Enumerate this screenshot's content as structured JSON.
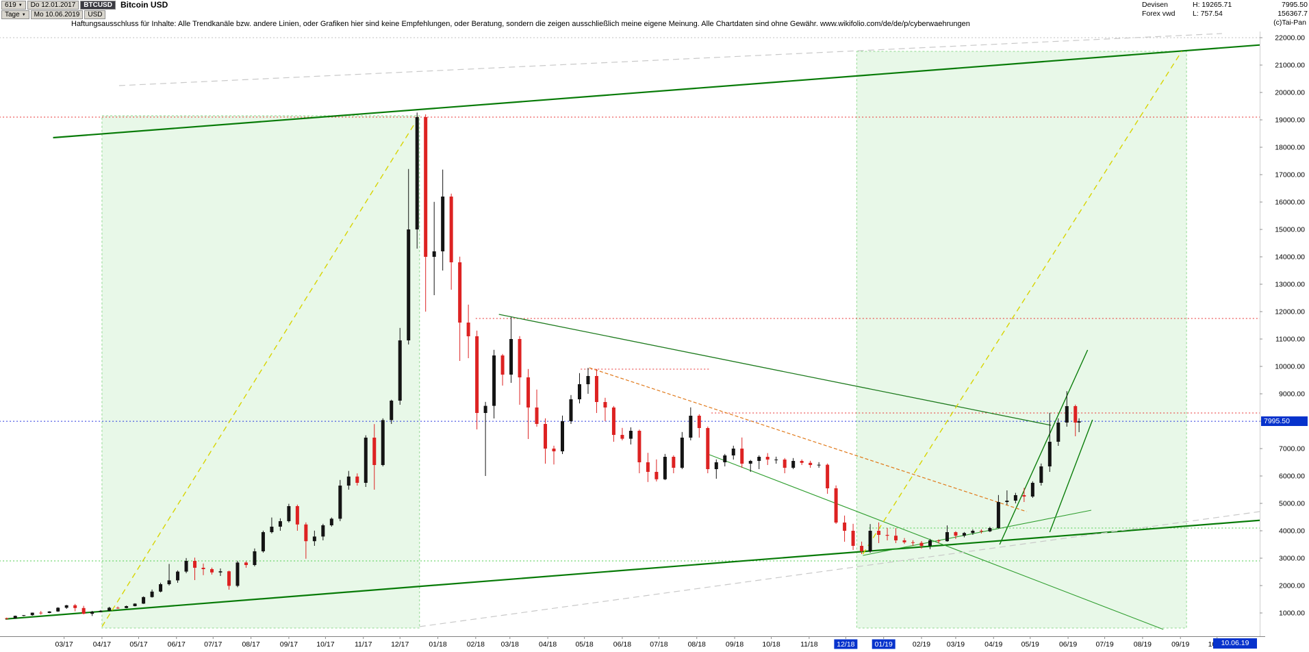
{
  "header": {
    "bars_count": "619",
    "dropdown_arrow": "▼",
    "start_date": "Do 12.01.2017",
    "symbol": "BTCUSD",
    "title": "Bitcoin USD",
    "period": "Tage",
    "end_date": "Mo 10.06.2019",
    "currency": "USD",
    "category": "Devisen",
    "feed": "Forex vwd",
    "high": "H: 19265.71",
    "low": "L: 757.54",
    "last_price": "7995.50",
    "volume": "156367.7",
    "copyright": "(c)Tai-Pan"
  },
  "disclaimer": "Haftungsausschluss für Inhalte: Alle Trendkanäle bzw. andere Linien, oder Grafiken hier sind keine Empfehlungen, oder Beratung, sondern die zeigen ausschließlich meine eigene Meinung. Alle Chartdaten sind ohne Gewähr.  www.wikifolio.com/de/de/p/cyberwaehrungen",
  "price_tag": "7995.50",
  "date_tag": "10.06.19",
  "colors": {
    "up": "#141414",
    "down": "#dd2222",
    "tag_bg": "#0733cc",
    "box_fill": "rgba(110,210,110,0.16)",
    "box_stroke": "#8fd88f"
  },
  "chart_data": {
    "type": "candlestick",
    "symbol": "BTCUSD",
    "title": "Bitcoin USD",
    "interval_label": "Tage",
    "x_start": "2017-01-12",
    "x_end": "2019-11-10",
    "current_price": 7995.5,
    "period_high": 19265.71,
    "period_low": 757.54,
    "ylim": [
      450,
      22400
    ],
    "y_ticks": [
      1000,
      2000,
      3000,
      4000,
      5000,
      6000,
      7000,
      8000,
      9000,
      10000,
      11000,
      12000,
      13000,
      14000,
      15000,
      16000,
      17000,
      18000,
      19000,
      20000,
      21000,
      22000
    ],
    "x_ticks": [
      "03/17",
      "04/17",
      "05/17",
      "06/17",
      "07/17",
      "08/17",
      "09/17",
      "10/17",
      "11/17",
      "12/17",
      "01/18",
      "02/18",
      "03/18",
      "04/18",
      "05/18",
      "06/18",
      "07/18",
      "08/18",
      "09/18",
      "10/18",
      "11/18",
      "12/18",
      "01/19",
      "02/19",
      "03/19",
      "04/19",
      "05/19",
      "06/19",
      "07/19",
      "08/19",
      "09/19",
      "10/19"
    ],
    "highlighted_x_ticks": [
      "12/18",
      "01/19"
    ],
    "candles_weekly": [
      [
        "2017-01-13",
        810,
        830,
        758,
        800
      ],
      [
        "2017-01-20",
        800,
        905,
        790,
        895
      ],
      [
        "2017-01-27",
        895,
        925,
        880,
        920
      ],
      [
        "2017-02-03",
        920,
        1015,
        900,
        1010
      ],
      [
        "2017-02-10",
        1010,
        1070,
        940,
        1000
      ],
      [
        "2017-02-17",
        1000,
        1065,
        990,
        1055
      ],
      [
        "2017-02-24",
        1055,
        1210,
        1040,
        1190
      ],
      [
        "2017-03-03",
        1190,
        1295,
        1150,
        1280
      ],
      [
        "2017-03-10",
        1280,
        1330,
        1060,
        1180
      ],
      [
        "2017-03-17",
        1180,
        1260,
        950,
        970
      ],
      [
        "2017-03-24",
        970,
        1075,
        890,
        1040
      ],
      [
        "2017-03-31",
        1040,
        1105,
        1020,
        1080
      ],
      [
        "2017-04-07",
        1080,
        1225,
        1060,
        1190
      ],
      [
        "2017-04-14",
        1190,
        1235,
        1150,
        1180
      ],
      [
        "2017-04-21",
        1180,
        1270,
        1170,
        1250
      ],
      [
        "2017-04-28",
        1250,
        1355,
        1240,
        1340
      ],
      [
        "2017-05-05",
        1340,
        1605,
        1330,
        1580
      ],
      [
        "2017-05-12",
        1580,
        1855,
        1560,
        1780
      ],
      [
        "2017-05-19",
        1780,
        2105,
        1750,
        2050
      ],
      [
        "2017-05-26",
        2050,
        2790,
        2000,
        2190
      ],
      [
        "2017-06-02",
        2190,
        2555,
        2100,
        2510
      ],
      [
        "2017-06-09",
        2510,
        3005,
        2450,
        2900
      ],
      [
        "2017-06-16",
        2900,
        3020,
        2200,
        2650
      ],
      [
        "2017-06-23",
        2650,
        2805,
        2380,
        2600
      ],
      [
        "2017-06-30",
        2600,
        2655,
        2400,
        2480
      ],
      [
        "2017-07-07",
        2480,
        2625,
        2350,
        2520
      ],
      [
        "2017-07-14",
        2520,
        2545,
        1850,
        1990
      ],
      [
        "2017-07-21",
        1990,
        2905,
        1940,
        2840
      ],
      [
        "2017-07-28",
        2840,
        2885,
        2650,
        2750
      ],
      [
        "2017-08-04",
        2750,
        3355,
        2700,
        3250
      ],
      [
        "2017-08-11",
        3250,
        4005,
        3200,
        3950
      ],
      [
        "2017-08-18",
        3950,
        4485,
        3900,
        4150
      ],
      [
        "2017-08-25",
        4150,
        4455,
        4000,
        4350
      ],
      [
        "2017-09-01",
        4350,
        4985,
        4300,
        4900
      ],
      [
        "2017-09-08",
        4900,
        4955,
        4000,
        4230
      ],
      [
        "2017-09-15",
        4230,
        4305,
        2980,
        3620
      ],
      [
        "2017-09-22",
        3620,
        4005,
        3450,
        3790
      ],
      [
        "2017-09-29",
        3790,
        4255,
        3650,
        4200
      ],
      [
        "2017-10-06",
        4200,
        4485,
        4150,
        4440
      ],
      [
        "2017-10-13",
        4440,
        5855,
        4350,
        5650
      ],
      [
        "2017-10-20",
        5650,
        6185,
        5500,
        5980
      ],
      [
        "2017-10-27",
        5980,
        6095,
        5650,
        5750
      ],
      [
        "2017-11-03",
        5750,
        7485,
        5600,
        7400
      ],
      [
        "2017-11-10",
        7400,
        7895,
        5500,
        6400
      ],
      [
        "2017-11-17",
        6400,
        8105,
        6350,
        8040
      ],
      [
        "2017-11-24",
        8040,
        8785,
        7900,
        8750
      ],
      [
        "2017-12-01",
        8750,
        11405,
        8600,
        10950
      ],
      [
        "2017-12-08",
        10950,
        17205,
        10800,
        15000
      ],
      [
        "2017-12-15",
        15000,
        19265,
        14300,
        19100
      ],
      [
        "2017-12-22",
        19100,
        19200,
        12000,
        14000
      ],
      [
        "2017-12-29",
        14000,
        16005,
        12600,
        14200
      ],
      [
        "2018-01-05",
        14200,
        17185,
        13500,
        16200
      ],
      [
        "2018-01-12",
        16200,
        16305,
        12800,
        13800
      ],
      [
        "2018-01-19",
        13800,
        14005,
        10200,
        11600
      ],
      [
        "2018-01-26",
        11600,
        12255,
        10300,
        11100
      ],
      [
        "2018-02-02",
        11100,
        11305,
        7700,
        8300
      ],
      [
        "2018-02-09",
        8300,
        8705,
        6000,
        8560
      ],
      [
        "2018-02-16",
        8560,
        10605,
        8100,
        10400
      ],
      [
        "2018-02-23",
        10400,
        10455,
        9300,
        9700
      ],
      [
        "2018-03-02",
        9700,
        11805,
        9400,
        11000
      ],
      [
        "2018-03-09",
        11000,
        11105,
        8600,
        9600
      ],
      [
        "2018-03-16",
        9600,
        9905,
        7350,
        8500
      ],
      [
        "2018-03-23",
        8500,
        9155,
        7800,
        7900
      ],
      [
        "2018-03-30",
        7900,
        8105,
        6450,
        7000
      ],
      [
        "2018-04-06",
        7000,
        7105,
        6420,
        6900
      ],
      [
        "2018-04-13",
        6900,
        8205,
        6800,
        8000
      ],
      [
        "2018-04-20",
        8000,
        8955,
        7900,
        8800
      ],
      [
        "2018-04-27",
        8800,
        9755,
        8650,
        9350
      ],
      [
        "2018-05-04",
        9350,
        9945,
        9000,
        9650
      ],
      [
        "2018-05-11",
        9650,
        9905,
        8300,
        8700
      ],
      [
        "2018-05-18",
        8700,
        8855,
        8000,
        8500
      ],
      [
        "2018-05-25",
        8500,
        8555,
        7250,
        7500
      ],
      [
        "2018-06-01",
        7500,
        7755,
        7300,
        7360
      ],
      [
        "2018-06-08",
        7360,
        7775,
        7150,
        7650
      ],
      [
        "2018-06-15",
        7650,
        7695,
        6100,
        6500
      ],
      [
        "2018-06-22",
        6500,
        6845,
        5780,
        6150
      ],
      [
        "2018-06-29",
        6150,
        6605,
        5800,
        5880
      ],
      [
        "2018-07-06",
        5880,
        6805,
        5850,
        6700
      ],
      [
        "2018-07-13",
        6700,
        6755,
        6100,
        6300
      ],
      [
        "2018-07-20",
        6300,
        7605,
        6250,
        7400
      ],
      [
        "2018-07-27",
        7400,
        8505,
        7300,
        8200
      ],
      [
        "2018-08-03",
        8200,
        8255,
        7400,
        7750
      ],
      [
        "2018-08-10",
        7750,
        7805,
        6100,
        6250
      ],
      [
        "2018-08-17",
        6250,
        6605,
        5900,
        6500
      ],
      [
        "2018-08-24",
        6500,
        6805,
        6350,
        6750
      ],
      [
        "2018-08-31",
        6750,
        7105,
        6600,
        7000
      ],
      [
        "2018-09-07",
        7000,
        7405,
        6300,
        6450
      ],
      [
        "2018-09-14",
        6450,
        6585,
        6150,
        6550
      ],
      [
        "2018-09-21",
        6550,
        6755,
        6250,
        6700
      ],
      [
        "2018-09-28",
        6700,
        6835,
        6400,
        6600
      ],
      [
        "2018-10-05",
        6600,
        6705,
        6450,
        6600
      ],
      [
        "2018-10-12",
        6600,
        6655,
        6100,
        6300
      ],
      [
        "2018-10-19",
        6300,
        6655,
        6250,
        6550
      ],
      [
        "2018-10-26",
        6550,
        6605,
        6400,
        6480
      ],
      [
        "2018-11-02",
        6480,
        6555,
        6300,
        6400
      ],
      [
        "2018-11-09",
        6400,
        6505,
        6300,
        6410
      ],
      [
        "2018-11-16",
        6410,
        6455,
        5350,
        5550
      ],
      [
        "2018-11-23",
        5550,
        5655,
        4250,
        4300
      ],
      [
        "2018-11-30",
        4300,
        4555,
        3600,
        4000
      ],
      [
        "2018-12-07",
        4000,
        4255,
        3300,
        3450
      ],
      [
        "2018-12-14",
        3450,
        3605,
        3150,
        3250
      ],
      [
        "2018-12-21",
        3250,
        4245,
        3200,
        4000
      ],
      [
        "2018-12-28",
        4000,
        4305,
        3550,
        3850
      ],
      [
        "2019-01-04",
        3850,
        4105,
        3650,
        3820
      ],
      [
        "2019-01-11",
        3820,
        4095,
        3550,
        3650
      ],
      [
        "2019-01-18",
        3650,
        3735,
        3520,
        3580
      ],
      [
        "2019-01-25",
        3580,
        3655,
        3450,
        3560
      ],
      [
        "2019-02-01",
        3560,
        3625,
        3350,
        3450
      ],
      [
        "2019-02-08",
        3450,
        3705,
        3330,
        3650
      ],
      [
        "2019-02-15",
        3650,
        3685,
        3540,
        3620
      ],
      [
        "2019-02-22",
        3620,
        4195,
        3600,
        3950
      ],
      [
        "2019-03-01",
        3950,
        3985,
        3700,
        3820
      ],
      [
        "2019-03-08",
        3820,
        3955,
        3760,
        3920
      ],
      [
        "2019-03-15",
        3920,
        4055,
        3850,
        4000
      ],
      [
        "2019-03-22",
        4000,
        4055,
        3900,
        3980
      ],
      [
        "2019-03-29",
        3980,
        4145,
        3950,
        4100
      ],
      [
        "2019-04-05",
        4100,
        5305,
        4080,
        5050
      ],
      [
        "2019-04-12",
        5050,
        5475,
        4950,
        5100
      ],
      [
        "2019-04-19",
        5100,
        5385,
        5000,
        5300
      ],
      [
        "2019-04-26",
        5300,
        5565,
        5050,
        5250
      ],
      [
        "2019-05-03",
        5250,
        5805,
        5200,
        5750
      ],
      [
        "2019-05-10",
        5750,
        6455,
        5650,
        6350
      ],
      [
        "2019-05-17",
        6350,
        8305,
        6150,
        7250
      ],
      [
        "2019-05-24",
        7250,
        8105,
        7100,
        7950
      ],
      [
        "2019-05-31",
        7950,
        9095,
        7800,
        8550
      ],
      [
        "2019-06-07",
        8550,
        8605,
        7450,
        7950
      ],
      [
        "2019-06-10",
        7950,
        8105,
        7600,
        7995.5
      ]
    ],
    "overlays": {
      "boxes": [
        {
          "name": "projection-box-2017-rally",
          "x1": "2017-04-01",
          "x2": "2017-12-17",
          "p1": 450,
          "p2": 19150
        },
        {
          "name": "projection-box-2019-rally",
          "x1": "2018-12-10",
          "x2": "2019-09-06",
          "p1": 450,
          "p2": 21500
        }
      ],
      "h_lines": [
        {
          "name": "level-22000",
          "p": 22000,
          "x1": "2017-01-07",
          "x2": "2019-11-12",
          "color": "#bfbfbf"
        },
        {
          "name": "resistance-19100",
          "p": 19100,
          "x1": "2017-01-07",
          "x2": "2019-11-12",
          "color": "#e83030"
        },
        {
          "name": "resistance-11750",
          "p": 11750,
          "x1": "2018-02-01",
          "x2": "2019-11-12",
          "color": "#e83030"
        },
        {
          "name": "resistance-9900",
          "p": 9900,
          "x1": "2018-04-28",
          "x2": "2018-08-12",
          "color": "#e83030"
        },
        {
          "name": "resistance-8300",
          "p": 8300,
          "x1": "2018-08-13",
          "x2": "2019-11-12",
          "color": "#e83030"
        },
        {
          "name": "current-price-line",
          "p": 7995.5,
          "x1": "2017-01-07",
          "x2": "2019-11-12",
          "color": "#2030dd"
        },
        {
          "name": "support-4100",
          "p": 4100,
          "x1": "2018-12-20",
          "x2": "2019-11-12",
          "color": "#4ecc4e"
        },
        {
          "name": "support-2900",
          "p": 2900,
          "x1": "2017-01-07",
          "x2": "2019-11-12",
          "color": "#4ecc4e"
        }
      ],
      "trend_lines": [
        {
          "name": "upper-green-channel",
          "x1": "2017-02-20",
          "p1": 18350,
          "x2": "2019-11-10",
          "p2": 21750,
          "color": "#067a06",
          "w": 2.2,
          "dash": null
        },
        {
          "name": "lower-green-channel",
          "x1": "2017-01-12",
          "p1": 780,
          "x2": "2019-11-10",
          "p2": 4400,
          "color": "#067a06",
          "w": 2.2,
          "dash": null
        },
        {
          "name": "downtrend-2018",
          "x1": "2018-02-20",
          "p1": 11900,
          "x2": "2019-05-18",
          "p2": 7850,
          "color": "#1c7a1c",
          "w": 1.3,
          "dash": null
        },
        {
          "name": "descending-through-dec18",
          "x1": "2018-08-10",
          "p1": 6800,
          "x2": "2019-08-18",
          "p2": 400,
          "color": "#2f9e2f",
          "w": 1.1,
          "dash": null
        },
        {
          "name": "rally-2019-steep-a",
          "x1": "2019-04-06",
          "p1": 3500,
          "x2": "2019-06-17",
          "p2": 10600,
          "color": "#0a7d0a",
          "w": 1.4,
          "dash": null
        },
        {
          "name": "rally-2019-steep-b",
          "x1": "2019-05-17",
          "p1": 3950,
          "x2": "2019-06-21",
          "p2": 8050,
          "color": "#0a7d0a",
          "w": 1.4,
          "dash": null
        },
        {
          "name": "minor-uptrend-from-dec18",
          "x1": "2018-12-15",
          "p1": 3100,
          "x2": "2019-06-20",
          "p2": 4750,
          "color": "#2f9e2f",
          "w": 1.1,
          "dash": null
        },
        {
          "name": "orange-downtrend-2018",
          "x1": "2018-05-05",
          "p1": 9950,
          "x2": "2019-04-28",
          "p2": 4700,
          "color": "#e07818",
          "w": 1.2,
          "dash": "5,3"
        },
        {
          "name": "yellow-diagonal-2017",
          "x1": "2017-04-01",
          "p1": 500,
          "x2": "2017-12-17",
          "p2": 19150,
          "color": "#d8d400",
          "w": 1.4,
          "dash": "8,6"
        },
        {
          "name": "yellow-diagonal-2019",
          "x1": "2018-12-15",
          "p1": 3150,
          "x2": "2019-09-02",
          "p2": 21500,
          "color": "#d8d400",
          "w": 1.4,
          "dash": "8,6"
        },
        {
          "name": "gray-upper-parallel",
          "x1": "2017-04-15",
          "p1": 20250,
          "x2": "2019-10-05",
          "p2": 22150,
          "color": "#c8c8c8",
          "w": 1.2,
          "dash": "9,6"
        },
        {
          "name": "gray-lower-parallel",
          "x1": "2017-12-17",
          "p1": 500,
          "x2": "2019-11-05",
          "p2": 4700,
          "color": "#c8c8c8",
          "w": 1.2,
          "dash": "9,6"
        }
      ]
    }
  }
}
